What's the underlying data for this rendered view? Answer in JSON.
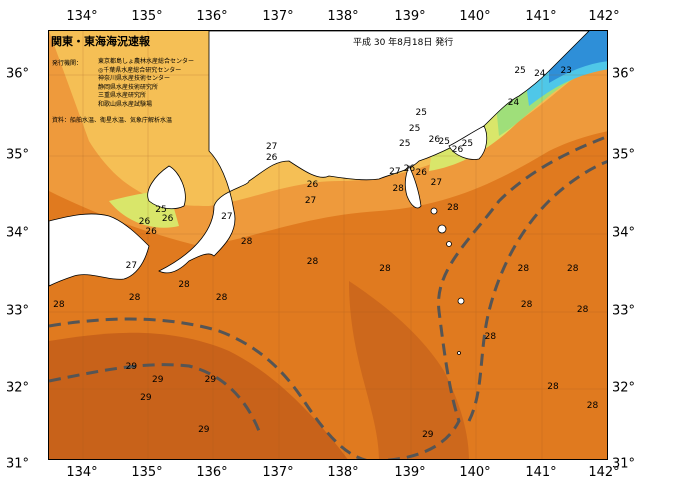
{
  "title": "関東・東海海況速報",
  "date": "平成 30 年8月18日 発行",
  "institutions_label": "発行機関：",
  "institutions": [
    "東京都島しょ農林水産総合センター",
    "◎千葉県水産総合研究センター",
    "神奈川県水産技術センター",
    "静岡県水産技術研究所",
    "三重県水産研究所",
    "和歌山県水産試験場"
  ],
  "sources": "資料：船舶水温、衛星水温、気象庁解析水温",
  "lon_ticks": [
    "134°",
    "135°",
    "136°",
    "137°",
    "138°",
    "139°",
    "140°",
    "141°",
    "142°"
  ],
  "lat_ticks": [
    "36°",
    "35°",
    "34°",
    "33°",
    "32°",
    "31°"
  ],
  "temperature_labels": [
    {
      "text": "23",
      "lon": 141.35,
      "lat": 35.99
    },
    {
      "text": "24",
      "lon": 140.95,
      "lat": 35.95
    },
    {
      "text": "25",
      "lon": 140.65,
      "lat": 35.99
    },
    {
      "text": "24",
      "lon": 140.55,
      "lat": 35.58
    },
    {
      "text": "25",
      "lon": 139.15,
      "lat": 35.45
    },
    {
      "text": "25",
      "lon": 139.05,
      "lat": 35.25
    },
    {
      "text": "25",
      "lon": 138.9,
      "lat": 35.06
    },
    {
      "text": "25",
      "lon": 139.5,
      "lat": 35.08
    },
    {
      "text": "26",
      "lon": 139.35,
      "lat": 35.1
    },
    {
      "text": "25",
      "lon": 139.85,
      "lat": 35.06
    },
    {
      "text": "26",
      "lon": 139.7,
      "lat": 34.98
    },
    {
      "text": "27",
      "lon": 138.75,
      "lat": 34.7
    },
    {
      "text": "26",
      "lon": 138.97,
      "lat": 34.74
    },
    {
      "text": "26",
      "lon": 139.15,
      "lat": 34.68
    },
    {
      "text": "27",
      "lon": 139.38,
      "lat": 34.55
    },
    {
      "text": "28",
      "lon": 138.8,
      "lat": 34.48
    },
    {
      "text": "28",
      "lon": 139.63,
      "lat": 34.24
    },
    {
      "text": "27",
      "lon": 136.88,
      "lat": 35.02
    },
    {
      "text": "26",
      "lon": 136.88,
      "lat": 34.88
    },
    {
      "text": "26",
      "lon": 137.5,
      "lat": 34.53
    },
    {
      "text": "27",
      "lon": 137.47,
      "lat": 34.32
    },
    {
      "text": "25",
      "lon": 135.2,
      "lat": 34.21
    },
    {
      "text": "26",
      "lon": 135.3,
      "lat": 34.09
    },
    {
      "text": "26",
      "lon": 134.95,
      "lat": 34.06
    },
    {
      "text": "26",
      "lon": 135.05,
      "lat": 33.93
    },
    {
      "text": "27",
      "lon": 136.2,
      "lat": 34.12
    },
    {
      "text": "28",
      "lon": 136.5,
      "lat": 33.8
    },
    {
      "text": "27",
      "lon": 134.75,
      "lat": 33.5
    },
    {
      "text": "28",
      "lon": 135.55,
      "lat": 33.25
    },
    {
      "text": "28",
      "lon": 134.8,
      "lat": 33.08
    },
    {
      "text": "28",
      "lon": 136.12,
      "lat": 33.08
    },
    {
      "text": "28",
      "lon": 133.65,
      "lat": 33.0
    },
    {
      "text": "28",
      "lon": 137.5,
      "lat": 33.55
    },
    {
      "text": "28",
      "lon": 138.6,
      "lat": 33.45
    },
    {
      "text": "28",
      "lon": 140.7,
      "lat": 33.45
    },
    {
      "text": "28",
      "lon": 141.45,
      "lat": 33.45
    },
    {
      "text": "28",
      "lon": 140.75,
      "lat": 33.0
    },
    {
      "text": "28",
      "lon": 141.6,
      "lat": 32.93
    },
    {
      "text": "28",
      "lon": 140.2,
      "lat": 32.58
    },
    {
      "text": "28",
      "lon": 141.15,
      "lat": 31.95
    },
    {
      "text": "28",
      "lon": 141.75,
      "lat": 31.7
    },
    {
      "text": "29",
      "lon": 134.75,
      "lat": 32.2
    },
    {
      "text": "29",
      "lon": 135.15,
      "lat": 32.03
    },
    {
      "text": "29",
      "lon": 135.95,
      "lat": 32.03
    },
    {
      "text": "29",
      "lon": 134.97,
      "lat": 31.8
    },
    {
      "text": "29",
      "lon": 135.85,
      "lat": 31.4
    },
    {
      "text": "29",
      "lon": 139.25,
      "lat": 31.33
    }
  ],
  "colors": {
    "sea_28": "#e07a1f",
    "sea_29": "#c8621a",
    "sea_27": "#ee9a3c",
    "sea_26": "#f5bf55",
    "sea_25": "#d9e66a",
    "sea_24": "#9fdf7a",
    "sea_23": "#4fc7e8",
    "sea_22": "#2e8fd8",
    "land": "#ffffff",
    "current_line": "#555555"
  }
}
